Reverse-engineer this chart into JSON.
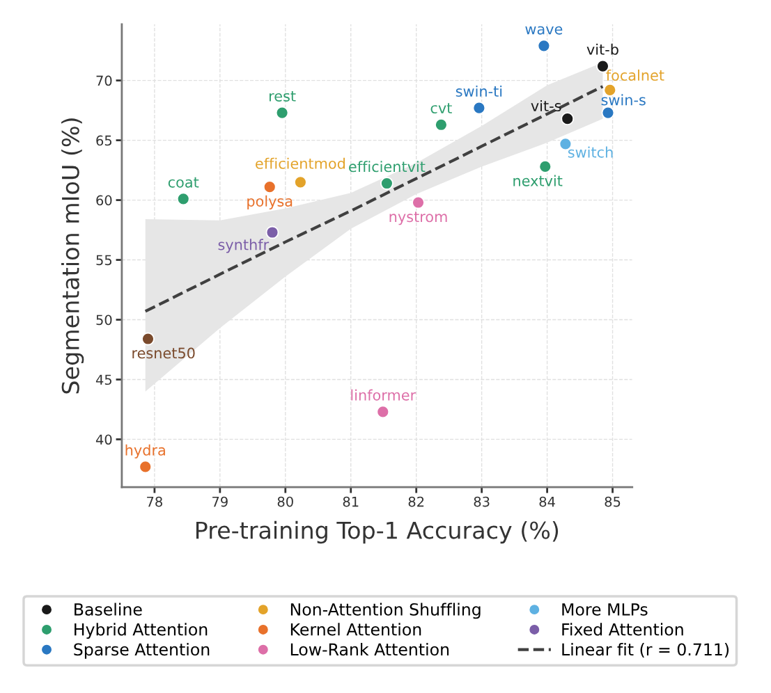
{
  "chart_data": {
    "type": "scatter",
    "xlabel": "Pre-training Top-1 Accuracy (%)",
    "ylabel": "Segmentation mIoU (%)",
    "xlim": [
      77.5,
      85.3
    ],
    "ylim": [
      36,
      74.7
    ],
    "xticks": [
      78,
      79,
      80,
      81,
      82,
      83,
      84,
      85
    ],
    "yticks": [
      40,
      45,
      50,
      55,
      60,
      65,
      70
    ],
    "grid": true,
    "legend": "bottom",
    "marker": "circle",
    "series": [
      {
        "name": "Baseline",
        "color": "#1a1a1a",
        "x": [
          84.85,
          84.31
        ],
        "values": [
          71.2,
          66.8
        ]
      },
      {
        "name": "Hybrid Attention",
        "color": "#2e9e6e",
        "x": [
          83.97,
          82.38,
          79.95,
          81.55,
          78.44
        ],
        "values": [
          62.8,
          66.3,
          67.3,
          61.4,
          60.1
        ]
      },
      {
        "name": "Sparse Attention",
        "color": "#2a78c2",
        "x": [
          83.95,
          84.93,
          82.96
        ],
        "values": [
          72.9,
          67.3,
          67.7
        ]
      },
      {
        "name": "Non-Attention Shuffling",
        "color": "#e3a32a",
        "x": [
          84.96,
          80.23
        ],
        "values": [
          69.2,
          61.5
        ]
      },
      {
        "name": "Kernel Attention",
        "color": "#e8712b",
        "x": [
          79.76,
          77.86
        ],
        "values": [
          61.1,
          37.7
        ]
      },
      {
        "name": "Low-Rank Attention",
        "color": "#dd6fa8",
        "x": [
          82.03,
          81.49
        ],
        "values": [
          59.8,
          42.3
        ]
      },
      {
        "name": "More MLPs",
        "color": "#5eb1e2",
        "x": [
          84.28
        ],
        "values": [
          64.7
        ]
      },
      {
        "name": "Fixed Attention",
        "color": "#7b5ea8",
        "x": [
          79.8
        ],
        "values": [
          57.3
        ]
      },
      {
        "color": "#7a4a2c",
        "x": [
          77.9
        ],
        "values": [
          48.4
        ]
      },
      {
        "name": "Linear fit (r = 0.711)",
        "type": "line",
        "line_style": "dashed",
        "marker": "none",
        "color": "#404040",
        "x": [
          77.86,
          79,
          80,
          81,
          82,
          83,
          84,
          84.85
        ],
        "values": [
          50.7,
          53.8,
          56.5,
          59.1,
          61.8,
          64.5,
          67.2,
          69.5
        ],
        "lower": [
          44.0,
          49.3,
          53.6,
          57.6,
          60.5,
          62.8,
          64.8,
          66.8
        ],
        "upper": [
          58.4,
          58.3,
          59.3,
          60.6,
          63.1,
          66.2,
          69.6,
          71.5
        ]
      }
    ],
    "annotations": [
      {
        "text": "vit-b",
        "x": 84.85,
        "y": 71.2
      },
      {
        "text": "vit-s",
        "x": 84.31,
        "y": 66.8
      },
      {
        "text": "nextvit",
        "x": 83.97,
        "y": 62.8
      },
      {
        "text": "cvt",
        "x": 82.38,
        "y": 66.3
      },
      {
        "text": "rest",
        "x": 79.95,
        "y": 67.3
      },
      {
        "text": "efficientvit",
        "x": 81.55,
        "y": 61.4
      },
      {
        "text": "coat",
        "x": 78.44,
        "y": 60.1
      },
      {
        "text": "wave",
        "x": 83.95,
        "y": 72.9
      },
      {
        "text": "swin-s",
        "x": 84.93,
        "y": 67.3
      },
      {
        "text": "swin-ti",
        "x": 82.96,
        "y": 67.7
      },
      {
        "text": "focalnet",
        "x": 84.96,
        "y": 69.2
      },
      {
        "text": "efficientmod",
        "x": 80.23,
        "y": 61.5
      },
      {
        "text": "polysa",
        "x": 79.76,
        "y": 61.1
      },
      {
        "text": "hydra",
        "x": 77.86,
        "y": 37.7
      },
      {
        "text": "nystrom",
        "x": 82.03,
        "y": 59.8
      },
      {
        "text": "linformer",
        "x": 81.49,
        "y": 42.3
      },
      {
        "text": "switch",
        "x": 84.28,
        "y": 64.7
      },
      {
        "text": "synthfr",
        "x": 79.8,
        "y": 57.3
      },
      {
        "text": "resnet50",
        "x": 77.9,
        "y": 48.4
      }
    ]
  }
}
